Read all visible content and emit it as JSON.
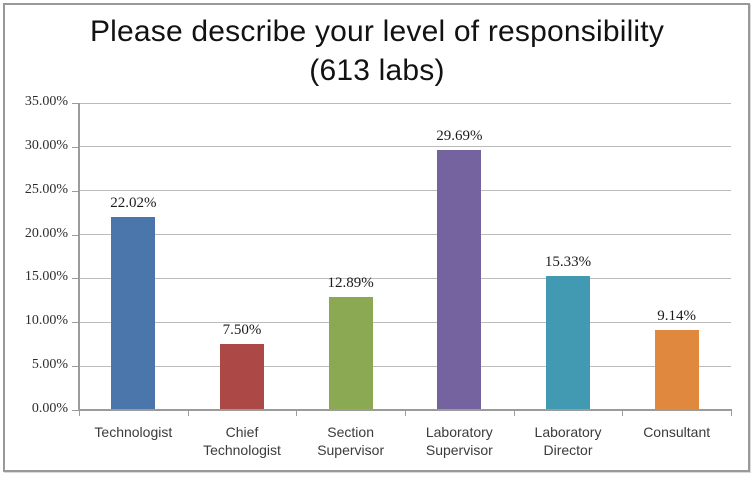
{
  "chart_data": {
    "type": "bar",
    "title": "Please describe your level of responsibility",
    "subtitle": "(613 labs)",
    "categories": [
      "Technologist",
      "Chief Technologist",
      "Section Supervisor",
      "Laboratory Supervisor",
      "Laboratory Director",
      "Consultant"
    ],
    "values": [
      22.02,
      7.5,
      12.89,
      29.69,
      15.33,
      9.14
    ],
    "value_labels": [
      "22.02%",
      "7.50%",
      "12.89%",
      "29.69%",
      "15.33%",
      "9.14%"
    ],
    "bar_colors": [
      "#4a76ac",
      "#ac4846",
      "#8ba853",
      "#74639e",
      "#4299b2",
      "#e0883e"
    ],
    "xlabel": "",
    "ylabel": "",
    "ylim": [
      0,
      35
    ],
    "y_tick_step": 5,
    "y_tick_labels": [
      "0.00%",
      "5.00%",
      "10.00%",
      "15.00%",
      "20.00%",
      "25.00%",
      "30.00%",
      "35.00%"
    ],
    "grid": true,
    "legend_position": "none"
  },
  "colors": {
    "grid": "#bcbcbc",
    "axis": "#9b9b9b",
    "frame_border": "#97999b",
    "title_text": "#121212",
    "tick_text": "#2e2e2e",
    "value_text": "#1c1c1c",
    "category_text": "#3b3b3b"
  }
}
